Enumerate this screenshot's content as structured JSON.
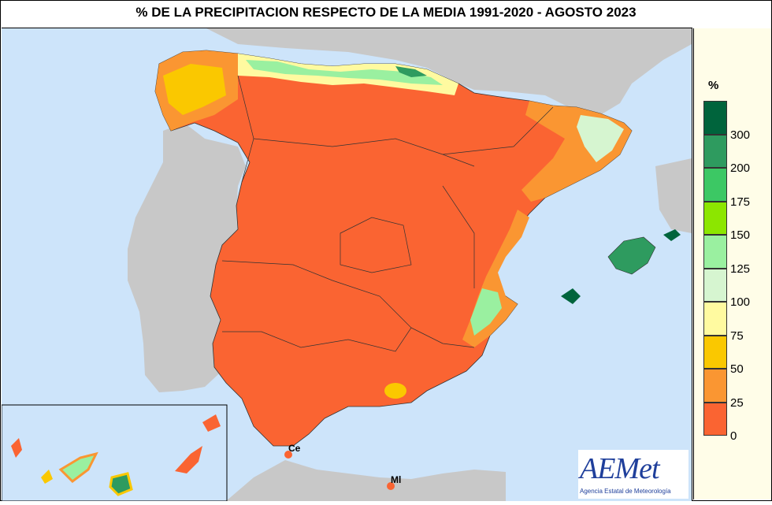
{
  "title": "% DE LA PRECIPITACION RESPECTO DE LA MEDIA 1991-2020 - AGOSTO 2023",
  "legend": {
    "unit": "%",
    "ticks": [
      "300",
      "200",
      "175",
      "150",
      "125",
      "100",
      "75",
      "50",
      "25",
      "0"
    ],
    "colors": [
      "#00643c",
      "#2e9b5f",
      "#3cc864",
      "#8ce600",
      "#9af0a0",
      "#d6f5d0",
      "#fffaa0",
      "#fac800",
      "#fa9632",
      "#fa6432"
    ]
  },
  "labels": {
    "ceuta": "Ce",
    "melilla": "Ml"
  },
  "logo": {
    "word": "AEMet",
    "subtitle": "Agencia Estatal de Meteorología"
  },
  "colors": {
    "sea": "#cde4fa",
    "land_other": "#c8c8c8",
    "main_category": "#fa6432"
  }
}
